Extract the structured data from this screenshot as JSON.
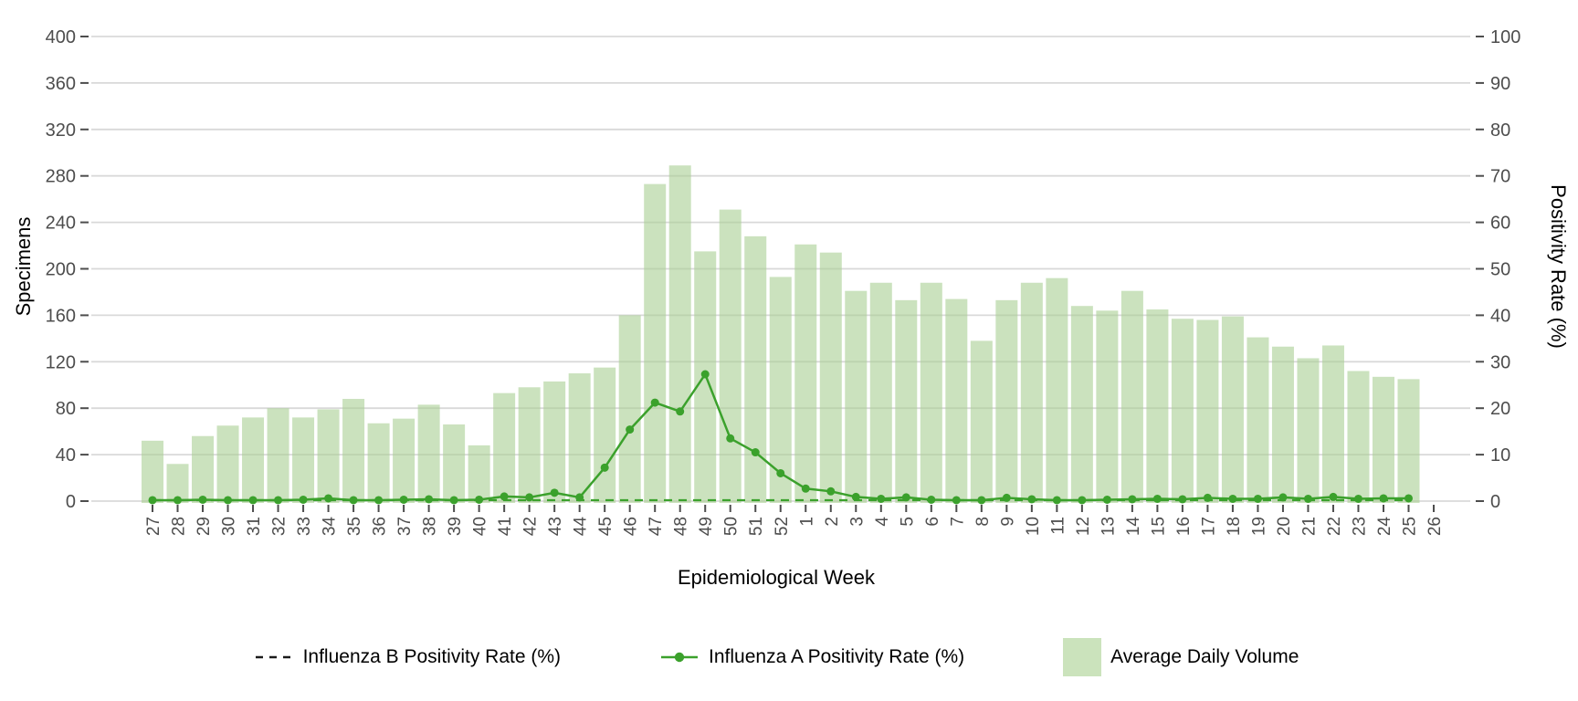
{
  "chart": {
    "axes": {
      "left": {
        "title": "Specimens"
      },
      "right": {
        "title": "Positivity Rate (%)"
      },
      "x": {
        "title": "Epidemiological Week"
      }
    },
    "legend": {
      "items": [
        {
          "label": "Influenza B Positivity Rate (%)",
          "key": "dashed-line",
          "key_color": "#1a1a1a"
        },
        {
          "label": "Influenza A Positivity Rate (%)",
          "key": "line-with-point",
          "key_color": "#3ba12c"
        },
        {
          "label": "Average Daily Volume",
          "key": "filled-square",
          "key_color": "#cbe3bc"
        }
      ]
    }
  },
  "chart_data": {
    "type": "composite",
    "title": "",
    "xlabel": "Epidemiological Week",
    "ylabel_left": "Specimens",
    "ylabel_right": "Positivity Rate (%)",
    "categories": [
      "27",
      "28",
      "29",
      "30",
      "31",
      "32",
      "33",
      "34",
      "35",
      "36",
      "37",
      "38",
      "39",
      "40",
      "41",
      "42",
      "43",
      "44",
      "45",
      "46",
      "47",
      "48",
      "49",
      "50",
      "51",
      "52",
      "1",
      "2",
      "3",
      "4",
      "5",
      "6",
      "7",
      "8",
      "9",
      "10",
      "11",
      "12",
      "13",
      "14",
      "15",
      "16",
      "17",
      "18",
      "19",
      "20",
      "21",
      "22",
      "23",
      "24",
      "25",
      "26"
    ],
    "left_ylim": [
      0,
      400
    ],
    "right_ylim": [
      0,
      100
    ],
    "left_ticks": [
      0,
      40,
      80,
      120,
      160,
      200,
      240,
      280,
      320,
      360,
      400
    ],
    "right_ticks": [
      0,
      10,
      20,
      30,
      40,
      50,
      60,
      70,
      80,
      90,
      100
    ],
    "grid": "horizontal-major-only",
    "legend_position": "bottom",
    "series": [
      {
        "name": "Average Daily Volume",
        "type": "bar",
        "axis": "left",
        "color": "#cbe3bc",
        "values": [
          52,
          32,
          56,
          65,
          72,
          80,
          72,
          79,
          88,
          67,
          71,
          83,
          66,
          48,
          93,
          98,
          103,
          110,
          115,
          160,
          273,
          289,
          215,
          251,
          228,
          193,
          221,
          214,
          181,
          188,
          173,
          188,
          174,
          138,
          173,
          188,
          192,
          168,
          164,
          181,
          165,
          157,
          156,
          159,
          141,
          133,
          123,
          134,
          112,
          107,
          105,
          null
        ]
      },
      {
        "name": "Influenza A Positivity Rate (%)",
        "type": "line",
        "axis": "right",
        "linestyle": "solid",
        "marker": "circle",
        "color": "#3ba12c",
        "values": [
          0.2,
          0.2,
          0.3,
          0.2,
          0.2,
          0.2,
          0.3,
          0.6,
          0.2,
          0.2,
          0.3,
          0.4,
          0.2,
          0.3,
          1.0,
          0.8,
          1.8,
          0.8,
          7.2,
          15.4,
          21.2,
          19.3,
          27.3,
          13.5,
          10.5,
          6.0,
          2.7,
          2.1,
          0.9,
          0.5,
          0.8,
          0.3,
          0.2,
          0.2,
          0.7,
          0.4,
          0.2,
          0.2,
          0.3,
          0.4,
          0.5,
          0.4,
          0.7,
          0.5,
          0.5,
          0.8,
          0.5,
          0.9,
          0.5,
          0.6,
          0.6,
          null
        ]
      },
      {
        "name": "Influenza B Positivity Rate (%)",
        "type": "line",
        "axis": "right",
        "linestyle": "dashed",
        "marker": "none",
        "color": "#3ba12c",
        "legend_key_color": "#1a1a1a",
        "values": [
          0.2,
          0.2,
          0.2,
          0.2,
          0.2,
          0.2,
          0.2,
          0.2,
          0.2,
          0.2,
          0.2,
          0.2,
          0.2,
          0.2,
          0.2,
          0.2,
          0.2,
          0.2,
          0.2,
          0.2,
          0.2,
          0.2,
          0.2,
          0.2,
          0.2,
          0.2,
          0.2,
          0.2,
          0.2,
          0.2,
          0.2,
          0.2,
          0.2,
          0.2,
          0.2,
          0.2,
          0.2,
          0.2,
          0.2,
          0.2,
          0.2,
          0.2,
          0.2,
          0.2,
          0.2,
          0.2,
          0.2,
          0.2,
          0.2,
          0.2,
          0.2,
          null
        ]
      }
    ]
  },
  "colors": {
    "background": "#ffffff",
    "bar_fill": "#cbe3bc",
    "grid": "#d9d9d9",
    "green": "#3ba12c",
    "tick_text": "#4d4d4d",
    "axis_title_text": "#000000",
    "legend_dash": "#1a1a1a"
  }
}
